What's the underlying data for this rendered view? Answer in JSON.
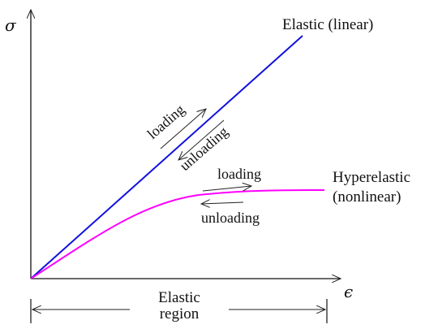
{
  "axes": {
    "y_symbol": "σ",
    "x_symbol": "ϵ"
  },
  "curves": {
    "linear": {
      "label": "Elastic (linear)",
      "color": "#1010e0"
    },
    "nonlinear": {
      "label_line1": "Hyperelastic",
      "label_line2": "(nonlinear)",
      "color": "#ff00ff"
    }
  },
  "annotations": {
    "linear_loading": "loading",
    "linear_unloading": "unloading",
    "nonlinear_loading": "loading",
    "nonlinear_unloading": "unloading"
  },
  "region": {
    "label_line1": "Elastic",
    "label_line2": "region"
  }
}
